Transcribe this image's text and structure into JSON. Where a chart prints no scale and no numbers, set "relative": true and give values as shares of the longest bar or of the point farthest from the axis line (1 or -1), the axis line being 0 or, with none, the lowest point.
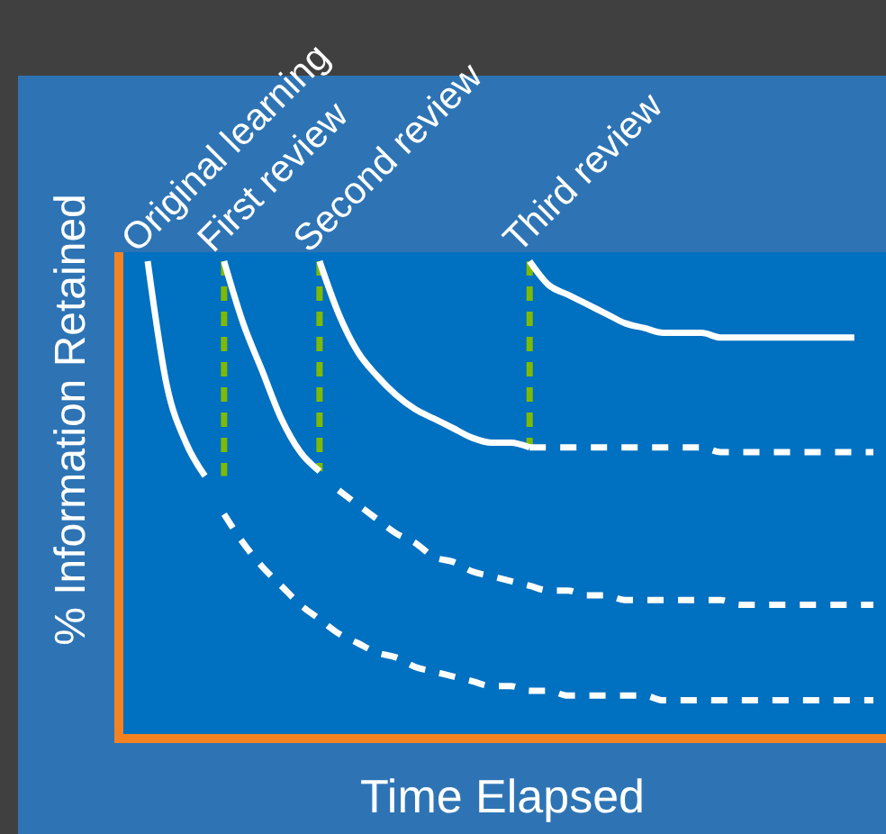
{
  "chart_data": {
    "type": "line",
    "relative": true,
    "xlabel": "Time Elapsed",
    "ylabel": "% Information Retained",
    "categories": [
      null,
      null,
      null,
      null,
      null,
      null,
      null,
      null,
      null,
      null,
      null,
      null,
      null,
      null,
      null,
      null,
      null,
      null,
      null,
      null,
      null,
      null,
      null,
      null,
      null,
      null,
      null,
      null,
      null,
      null,
      null,
      null,
      null,
      null,
      null,
      null,
      null,
      null,
      null
    ],
    "series": [
      {
        "name": "Original learning",
        "color": "#ffffff",
        "line_style": "solid",
        "values": [
          1.0,
          0.74,
          0.62,
          0.55,
          null,
          null,
          null,
          null,
          null,
          null,
          null,
          null,
          null,
          null,
          null,
          null,
          null,
          null,
          null,
          null,
          null,
          null,
          null,
          null,
          null,
          null,
          null,
          null,
          null,
          null,
          null,
          null,
          null,
          null,
          null,
          null,
          null,
          null,
          null
        ]
      },
      {
        "color": "#ffffff",
        "line_style": "dashed",
        "values": [
          null,
          null,
          null,
          null,
          0.47,
          0.41,
          0.36,
          0.32,
          0.28,
          0.25,
          0.22,
          0.2,
          0.18,
          0.17,
          0.15,
          0.14,
          0.13,
          0.12,
          0.11,
          0.11,
          0.1,
          0.1,
          0.09,
          0.09,
          0.09,
          0.09,
          0.09,
          0.08,
          0.08,
          0.08,
          0.08,
          0.08,
          0.08,
          0.08,
          0.08,
          0.08,
          0.08,
          0.08,
          0.08
        ]
      },
      {
        "name": "First review",
        "color": "#ffffff",
        "line_style": "solid",
        "values": [
          null,
          null,
          null,
          null,
          1.0,
          0.87,
          0.77,
          0.67,
          0.6,
          0.56,
          null,
          null,
          null,
          null,
          null,
          null,
          null,
          null,
          null,
          null,
          null,
          null,
          null,
          null,
          null,
          null,
          null,
          null,
          null,
          null,
          null,
          null,
          null,
          null,
          null,
          null,
          null,
          null,
          null
        ]
      },
      {
        "color": "#ffffff",
        "line_style": "dashed",
        "values": [
          null,
          null,
          null,
          null,
          null,
          null,
          null,
          null,
          null,
          null,
          0.52,
          0.49,
          0.46,
          0.43,
          0.41,
          0.38,
          0.37,
          0.35,
          0.34,
          0.33,
          0.32,
          0.31,
          0.31,
          0.3,
          0.3,
          0.29,
          0.29,
          0.29,
          0.29,
          0.29,
          0.29,
          0.28,
          0.28,
          0.28,
          0.28,
          0.28,
          0.28,
          0.28,
          0.28
        ]
      },
      {
        "name": "Second review",
        "color": "#ffffff",
        "line_style": "solid",
        "values": [
          null,
          null,
          null,
          null,
          null,
          null,
          null,
          null,
          null,
          1.0,
          0.89,
          0.81,
          0.76,
          0.72,
          0.69,
          0.67,
          0.65,
          0.63,
          0.62,
          0.62,
          0.61,
          null,
          null,
          null,
          null,
          null,
          null,
          null,
          null,
          null,
          null,
          null,
          null,
          null,
          null,
          null,
          null,
          null,
          null
        ]
      },
      {
        "color": "#ffffff",
        "line_style": "dashed",
        "values": [
          null,
          null,
          null,
          null,
          null,
          null,
          null,
          null,
          null,
          null,
          null,
          null,
          null,
          null,
          null,
          null,
          null,
          null,
          null,
          null,
          0.61,
          0.61,
          0.61,
          0.61,
          0.61,
          0.61,
          0.61,
          0.61,
          0.61,
          0.61,
          0.6,
          0.6,
          0.6,
          0.6,
          0.6,
          0.6,
          0.6,
          0.6,
          0.6
        ]
      },
      {
        "name": "Third review",
        "color": "#ffffff",
        "line_style": "solid",
        "values": [
          null,
          null,
          null,
          null,
          null,
          null,
          null,
          null,
          null,
          null,
          null,
          null,
          null,
          null,
          null,
          null,
          null,
          null,
          null,
          null,
          1.0,
          0.95,
          0.93,
          0.91,
          0.89,
          0.87,
          0.86,
          0.85,
          0.85,
          0.85,
          0.84,
          0.84,
          0.84,
          0.84,
          0.84,
          0.84,
          0.84,
          0.84,
          null
        ]
      }
    ]
  }
}
